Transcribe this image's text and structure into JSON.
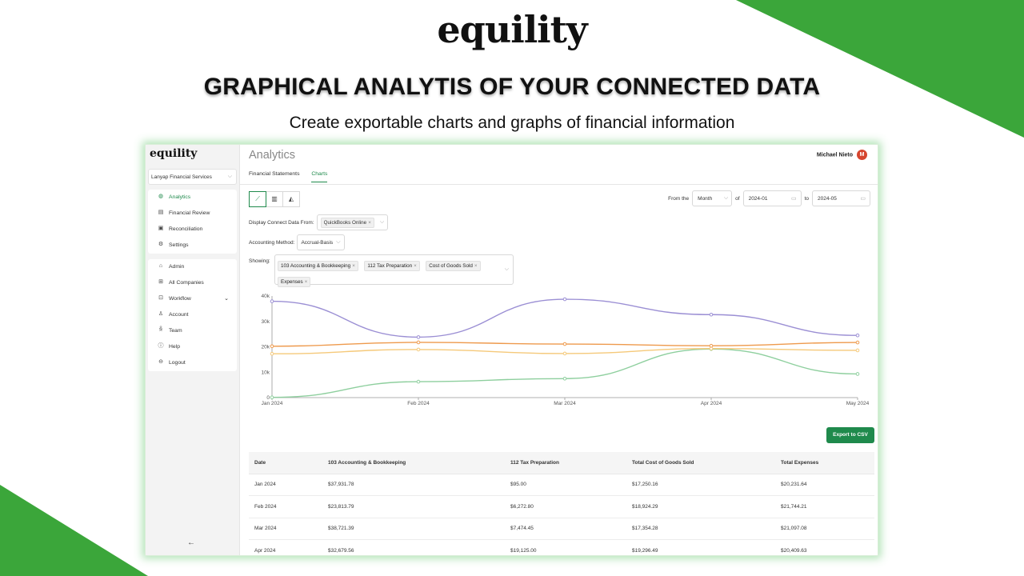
{
  "banner": {
    "logo": "equility",
    "headline": "GRAPHICAL ANALYTIS OF YOUR CONNECTED DATA",
    "subheadline": "Create exportable charts and graphs of financial information",
    "accent_color": "#3ba63a"
  },
  "sidebar": {
    "logo": "equility",
    "company": "Lanyap Financial Services",
    "primary_items": [
      {
        "label": "Analytics",
        "icon": "analytics-icon",
        "active": true
      },
      {
        "label": "Financial Review",
        "icon": "review-icon"
      },
      {
        "label": "Reconciliation",
        "icon": "reconciliation-icon"
      },
      {
        "label": "Settings",
        "icon": "gear-icon"
      }
    ],
    "secondary_items": [
      {
        "label": "Admin",
        "icon": "admin-icon"
      },
      {
        "label": "All Companies",
        "icon": "grid-icon"
      },
      {
        "label": "Workflow",
        "icon": "workflow-icon",
        "expandable": true
      },
      {
        "label": "Account",
        "icon": "user-icon"
      },
      {
        "label": "Team",
        "icon": "team-icon"
      },
      {
        "label": "Help",
        "icon": "help-icon"
      },
      {
        "label": "Logout",
        "icon": "logout-icon"
      }
    ],
    "collapse_icon": "arrow-left-icon"
  },
  "header": {
    "title": "Analytics",
    "user_name": "Michael Nieto",
    "avatar_initial": "M",
    "avatar_color": "#d6452e"
  },
  "tabs": [
    "Financial Statements",
    "Charts"
  ],
  "active_tab": "Charts",
  "chart_type_buttons": [
    "line-chart-icon",
    "bar-chart-icon",
    "area-chart-icon"
  ],
  "range": {
    "from_label": "From the",
    "period": "Month",
    "of_label": "of",
    "start": "2024-01",
    "to_label": "to",
    "end": "2024-05"
  },
  "filters": {
    "source_label": "Display Connect Data From:",
    "source_value": "QuickBooks Online",
    "method_label": "Accounting Method:",
    "method_value": "Accrual-Basis",
    "showing_label": "Showing:",
    "showing_tags": [
      "103 Accounting & Bookkeeping",
      "112 Tax Preparation",
      "Cost of Goods Sold",
      "Expenses"
    ]
  },
  "chart_data": {
    "type": "line",
    "x": [
      "Jan 2024",
      "Feb 2024",
      "Mar 2024",
      "Apr 2024",
      "May 2024"
    ],
    "ylim": [
      0,
      40000
    ],
    "yticks": [
      "0",
      "10k",
      "20k",
      "30k",
      "40k"
    ],
    "series": [
      {
        "color": "#9b8fd4",
        "values": [
          37931.78,
          23813.79,
          38721.39,
          32679.56,
          24500
        ]
      },
      {
        "color": "#8ecf9e",
        "values": [
          95.0,
          6272.8,
          7474.45,
          19125.0,
          9300
        ]
      },
      {
        "color": "#f5c97a",
        "values": [
          17250.16,
          18924.29,
          17354.28,
          19296.49,
          18600
        ]
      },
      {
        "color": "#ee9a4d",
        "values": [
          20231.64,
          21744.21,
          21097.08,
          20409.63,
          21700
        ]
      }
    ]
  },
  "export_label": "Export to CSV",
  "table": {
    "headers": [
      "Date",
      "103 Accounting & Bookkeeping",
      "112 Tax Preparation",
      "Total Cost of Goods Sold",
      "Total Expenses"
    ],
    "rows": [
      [
        "Jan 2024",
        "$37,931.78",
        "$95.00",
        "$17,250.16",
        "$20,231.64"
      ],
      [
        "Feb 2024",
        "$23,813.79",
        "$6,272.80",
        "$18,924.29",
        "$21,744.21"
      ],
      [
        "Mar 2024",
        "$38,721.39",
        "$7,474.45",
        "$17,354.28",
        "$21,097.08"
      ],
      [
        "Apr 2024",
        "$32,679.56",
        "$19,125.00",
        "$19,296.49",
        "$20,409.63"
      ]
    ]
  }
}
